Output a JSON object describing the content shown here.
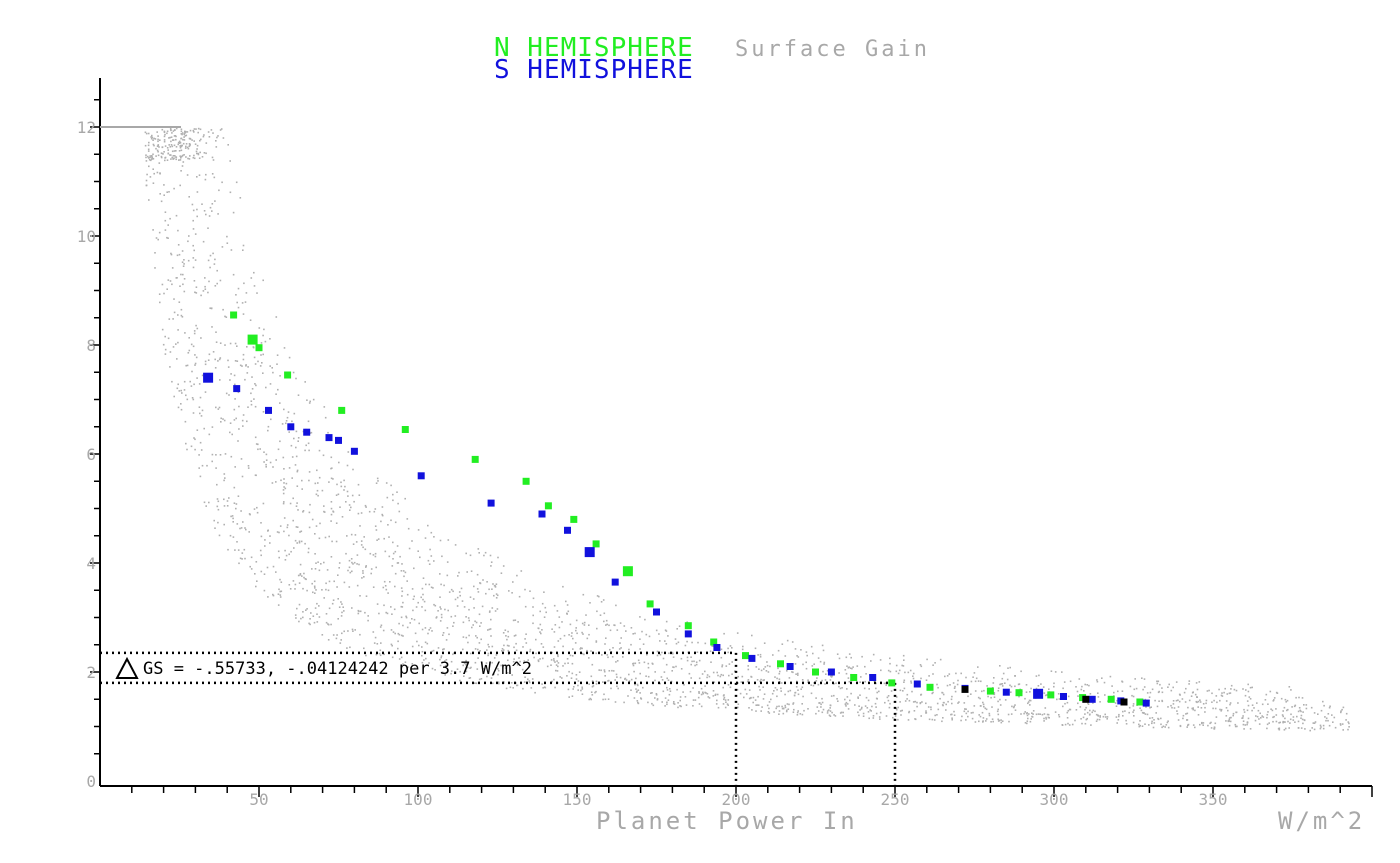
{
  "colors": {
    "north": "#22ee22",
    "south": "#1111dd",
    "cloud": "#b0b0b0",
    "axis": "#000000",
    "muted": "#a8a8a8",
    "mark": "#000000"
  },
  "title": {
    "north_label": "N HEMISPHERE",
    "south_label": "S HEMISPHERE",
    "subtitle": "Surface Gain"
  },
  "annotation": {
    "text": "GS = -.55733, -.04124242 per 3.7 W/m^2"
  },
  "chart_data": {
    "type": "scatter",
    "xlabel": "Planet Power In",
    "xunit": "W/m^2",
    "xlim": [
      0,
      400
    ],
    "ylim": [
      0,
      12.6
    ],
    "xticks": [
      50,
      100,
      150,
      200,
      250,
      300,
      350
    ],
    "yticks": [
      0,
      2,
      4,
      6,
      8,
      10,
      12
    ],
    "grid": false,
    "reference_lines": {
      "x": [
        200,
        250
      ],
      "y": [
        2.35,
        1.8
      ]
    },
    "series": [
      {
        "name": "N HEMISPHERE",
        "x": [
          42,
          48,
          50,
          59,
          76,
          96,
          118,
          134,
          141,
          149,
          156,
          166,
          173,
          185,
          193,
          203,
          214,
          225,
          237,
          249,
          261,
          280,
          289,
          299,
          309,
          318,
          327
        ],
        "y": [
          8.55,
          8.1,
          7.95,
          7.45,
          6.8,
          6.45,
          5.9,
          5.5,
          5.05,
          4.8,
          4.35,
          3.85,
          3.25,
          2.85,
          2.55,
          2.3,
          2.15,
          2.0,
          1.9,
          1.8,
          1.72,
          1.65,
          1.62,
          1.58,
          1.53,
          1.5,
          1.45
        ]
      },
      {
        "name": "S HEMISPHERE",
        "x": [
          34,
          43,
          53,
          60,
          65,
          72,
          75,
          80,
          101,
          123,
          139,
          147,
          154,
          162,
          175,
          185,
          194,
          205,
          217,
          230,
          243,
          257,
          272,
          285,
          295,
          303,
          312,
          321,
          329
        ],
        "y": [
          7.4,
          7.2,
          6.8,
          6.5,
          6.4,
          6.3,
          6.25,
          6.05,
          5.6,
          5.1,
          4.9,
          4.6,
          4.2,
          3.65,
          3.1,
          2.7,
          2.45,
          2.25,
          2.1,
          2.0,
          1.9,
          1.78,
          1.7,
          1.63,
          1.6,
          1.55,
          1.5,
          1.47,
          1.43
        ]
      },
      {
        "name": "",
        "x": [
          272,
          310,
          322
        ],
        "y": [
          1.68,
          1.5,
          1.45
        ]
      }
    ],
    "background_cloud": {
      "curves": [
        {
          "x_start": 14,
          "x_end": 395,
          "k": 160,
          "spread": 0.08
        },
        {
          "x_start": 16,
          "x_end": 393,
          "k": 190,
          "spread": 0.08
        },
        {
          "x_start": 18,
          "x_end": 395,
          "k": 220,
          "spread": 0.09
        },
        {
          "x_start": 15,
          "x_end": 390,
          "k": 260,
          "spread": 0.1
        },
        {
          "x_start": 20,
          "x_end": 392,
          "k": 300,
          "spread": 0.1
        },
        {
          "x_start": 22,
          "x_end": 385,
          "k": 345,
          "spread": 0.11
        },
        {
          "x_start": 25,
          "x_end": 375,
          "k": 400,
          "spread": 0.12
        }
      ],
      "cap": 12
    }
  }
}
